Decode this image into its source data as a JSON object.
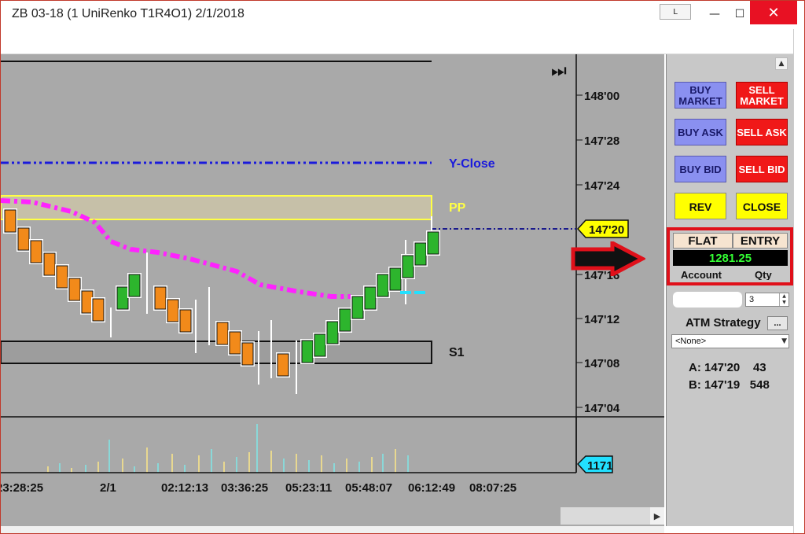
{
  "window": {
    "title": "ZB 03-18 (1 UniRenko T1R4O1)  2/1/2018",
    "l_button": "L",
    "minimize_glyph": "—",
    "maximize_glyph": "☐",
    "close_glyph": "✕"
  },
  "chart": {
    "price_labels": [
      "148'00",
      "147'28",
      "147'24",
      "147'20",
      "147'16",
      "147'12",
      "147'08",
      "147'04"
    ],
    "current_price_tag": "147'20",
    "volume_tag": "1171",
    "time_labels": [
      "23:28:25",
      "2/1",
      "02:12:13",
      "03:36:25",
      "05:23:11",
      "05:48:07",
      "06:12:49",
      "08:07:25"
    ],
    "levels": {
      "yclose": "Y-Close",
      "pp": "PP",
      "s1": "S1"
    },
    "colors": {
      "up": "#2db52d",
      "down": "#f28a1a",
      "yclose": "#1a1adc",
      "pp": "#ffff44",
      "ma": "#ff22ff",
      "background": "#a9a9a9"
    }
  },
  "order_panel": {
    "scroll_up": "▲",
    "buy_market": "BUY MARKET",
    "sell_market": "SELL MARKET",
    "buy_ask": "BUY ASK",
    "sell_ask": "SELL ASK",
    "buy_bid": "BUY BID",
    "sell_bid": "SELL BID",
    "reverse": "REV",
    "close": "CLOSE",
    "position": "FLAT",
    "entry": "ENTRY",
    "pnl": "1281.25",
    "account_label": "Account",
    "qty_label": "Qty",
    "qty_value": "3",
    "atm_label": "ATM Strategy",
    "atm_button": "...",
    "atm_selected": "<None>",
    "quote_ask": "A: 147'20    43",
    "quote_bid": "B: 147'19   548"
  }
}
